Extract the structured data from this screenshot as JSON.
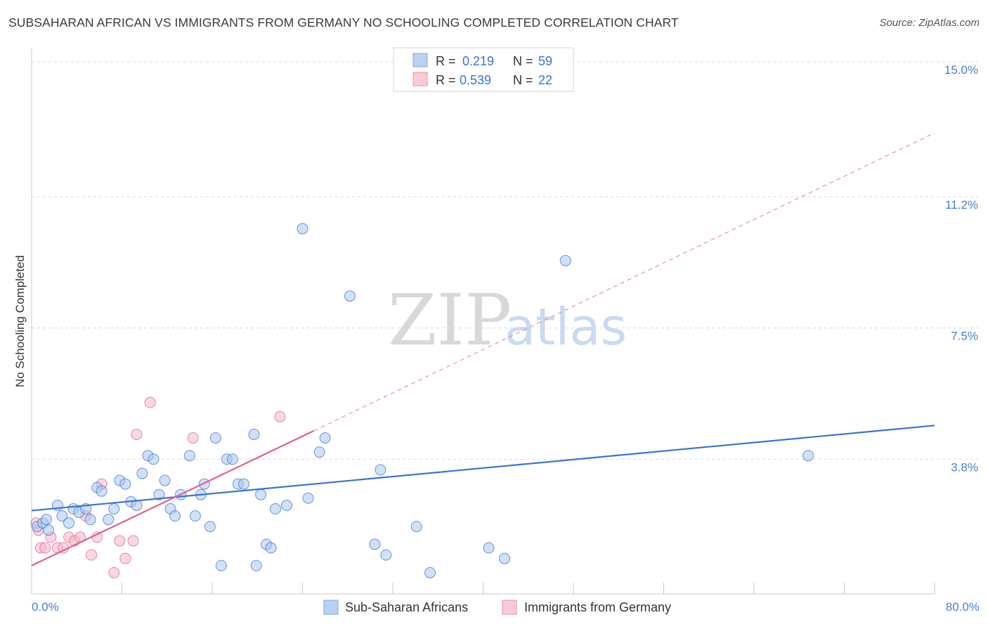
{
  "title": "SUBSAHARAN AFRICAN VS IMMIGRANTS FROM GERMANY NO SCHOOLING COMPLETED CORRELATION CHART",
  "source": "Source: ZipAtlas.com",
  "watermark": {
    "zip": "ZIP",
    "atlas": "atlas"
  },
  "colors": {
    "blue": "#3b74d0",
    "blue_fill": "#a9c6ee",
    "pink": "#e0628e",
    "pink_fill": "#f5b8cb",
    "grid": "#d9d9d9",
    "tick_text": "#4a7fd0"
  },
  "stats": [
    {
      "r_label": "R =",
      "r_value": "0.219",
      "n_label": "N =",
      "n_value": "59"
    },
    {
      "r_label": "R =",
      "r_value": "0.539",
      "n_label": "N =",
      "n_value": "22"
    }
  ],
  "legend": [
    {
      "label": "Sub-Saharan Africans",
      "color": "blue"
    },
    {
      "label": "Immigrants from Germany",
      "color": "pink"
    }
  ],
  "chart_data": {
    "type": "scatter",
    "title": "SUBSAHARAN AFRICAN VS IMMIGRANTS FROM GERMANY NO SCHOOLING COMPLETED CORRELATION CHART",
    "xlabel": "",
    "ylabel": "No Schooling Completed",
    "xlim": [
      0,
      80
    ],
    "ylim": [
      0,
      15.3
    ],
    "x_tick_labels": [
      "0.0%",
      "80.0%"
    ],
    "y_ticks": [
      {
        "value": 3.8,
        "label": "3.8%"
      },
      {
        "value": 7.5,
        "label": "7.5%"
      },
      {
        "value": 11.2,
        "label": "11.2%"
      },
      {
        "value": 15.0,
        "label": "15.0%"
      }
    ],
    "grid": true,
    "series": [
      {
        "name": "Sub-Saharan Africans",
        "color": "blue",
        "r": 0.219,
        "n": 59,
        "trend": {
          "x0": 0,
          "y0": 2.35,
          "x1": 80,
          "y1": 4.75,
          "style": "solid"
        },
        "points": [
          [
            0.5,
            1.9
          ],
          [
            1.0,
            2.0
          ],
          [
            1.3,
            2.1
          ],
          [
            1.5,
            1.8
          ],
          [
            2.3,
            2.5
          ],
          [
            2.7,
            2.2
          ],
          [
            3.3,
            2.0
          ],
          [
            3.7,
            2.4
          ],
          [
            4.2,
            2.3
          ],
          [
            4.8,
            2.4
          ],
          [
            5.2,
            2.1
          ],
          [
            5.8,
            3.0
          ],
          [
            6.2,
            2.9
          ],
          [
            6.8,
            2.1
          ],
          [
            7.3,
            2.4
          ],
          [
            7.8,
            3.2
          ],
          [
            8.3,
            3.1
          ],
          [
            8.8,
            2.6
          ],
          [
            9.3,
            2.5
          ],
          [
            9.8,
            3.4
          ],
          [
            10.3,
            3.9
          ],
          [
            10.8,
            3.8
          ],
          [
            11.3,
            2.8
          ],
          [
            11.8,
            3.2
          ],
          [
            12.3,
            2.4
          ],
          [
            12.7,
            2.2
          ],
          [
            13.2,
            2.8
          ],
          [
            14.0,
            3.9
          ],
          [
            14.5,
            2.2
          ],
          [
            15.0,
            2.8
          ],
          [
            15.3,
            3.1
          ],
          [
            15.8,
            1.9
          ],
          [
            16.3,
            4.4
          ],
          [
            16.8,
            0.8
          ],
          [
            17.3,
            3.8
          ],
          [
            17.8,
            3.8
          ],
          [
            18.3,
            3.1
          ],
          [
            18.8,
            3.1
          ],
          [
            19.7,
            4.5
          ],
          [
            19.9,
            0.8
          ],
          [
            20.3,
            2.8
          ],
          [
            20.8,
            1.4
          ],
          [
            21.2,
            1.3
          ],
          [
            21.6,
            2.4
          ],
          [
            22.6,
            2.5
          ],
          [
            24.0,
            10.3
          ],
          [
            24.5,
            2.7
          ],
          [
            25.5,
            4.0
          ],
          [
            26.0,
            4.4
          ],
          [
            28.2,
            8.4
          ],
          [
            30.4,
            1.4
          ],
          [
            30.9,
            3.5
          ],
          [
            31.4,
            1.1
          ],
          [
            34.1,
            1.9
          ],
          [
            35.3,
            0.6
          ],
          [
            40.5,
            1.3
          ],
          [
            41.9,
            1.0
          ],
          [
            47.3,
            9.4
          ],
          [
            68.8,
            3.9
          ]
        ]
      },
      {
        "name": "Immigrants from Germany",
        "color": "pink",
        "r": 0.539,
        "n": 22,
        "trend": {
          "x0": 0,
          "y0": 0.8,
          "x1": 25,
          "y1": 4.6,
          "extended_x1": 80,
          "extended_y1": 13.0,
          "style": "solid-then-dashed"
        },
        "points": [
          [
            0.4,
            2.0
          ],
          [
            0.6,
            1.8
          ],
          [
            0.8,
            1.3
          ],
          [
            1.2,
            1.3
          ],
          [
            1.7,
            1.6
          ],
          [
            2.3,
            1.3
          ],
          [
            2.8,
            1.3
          ],
          [
            3.3,
            1.6
          ],
          [
            3.8,
            1.5
          ],
          [
            4.3,
            1.6
          ],
          [
            4.8,
            2.2
          ],
          [
            5.3,
            1.1
          ],
          [
            5.8,
            1.6
          ],
          [
            6.2,
            3.1
          ],
          [
            7.3,
            0.6
          ],
          [
            7.8,
            1.5
          ],
          [
            8.3,
            1.0
          ],
          [
            9.0,
            1.5
          ],
          [
            9.3,
            4.5
          ],
          [
            10.5,
            5.4
          ],
          [
            14.3,
            4.4
          ],
          [
            22.0,
            5.0
          ]
        ]
      }
    ]
  }
}
